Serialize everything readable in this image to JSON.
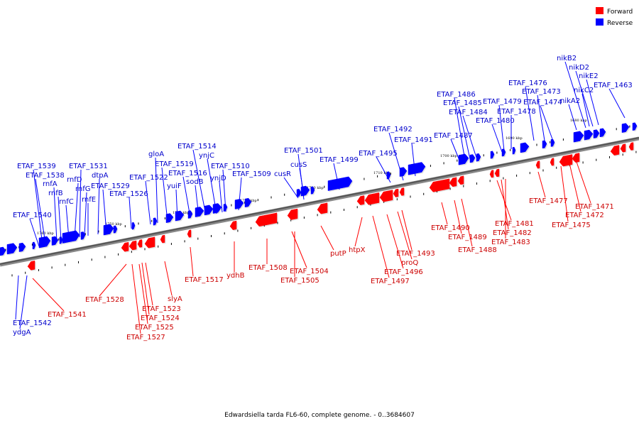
{
  "legend": {
    "forward": {
      "label": "Forward",
      "color": "#ff0000"
    },
    "reverse": {
      "label": "Reverse",
      "color": "#0000ff"
    }
  },
  "caption": "Edwardsiella tarda FL6-60, complete genome. - 0..3684607",
  "kbp_ticks": [
    "1760 kbp",
    "1750 kbp",
    "1740 kbp",
    "1730 kbp",
    "1720 kbp",
    "1710 kbp",
    "1700 kbp",
    "1690 kbp",
    "1680 kbp"
  ],
  "reverse_labels": [
    "ETAF_1539",
    "ETAF_1538",
    "rnfA",
    "rnfB",
    "rnfC",
    "ETAF_1540",
    "ETAF_1531",
    "rnfD",
    "dtpA",
    "rnfG",
    "rnfE",
    "ETAF_1529",
    "ETAF_1526",
    "gloA",
    "ETAF_1519",
    "ETAF_1522",
    "yuiF",
    "ETAF_1516",
    "sodB",
    "ETAF_1514",
    "ynjC",
    "ETAF_1510",
    "ynjD",
    "ETAF_1509",
    "ETAF_1501",
    "cusS",
    "cusR",
    "ETAF_1499",
    "ETAF_1495",
    "ETAF_1492",
    "ETAF_1491",
    "ETAF_1486",
    "ETAF_1485",
    "ETAF_1484",
    "ETAF_1487",
    "ETAF_1479",
    "ETAF_1478",
    "ETAF_1480",
    "ETAF_1476",
    "ETAF_1473",
    "ETAF_1474",
    "nikB2",
    "nikD2",
    "nikE2",
    "nikC2",
    "nikA2",
    "ETAF_1463",
    "ETAF_1542",
    "ydgA"
  ],
  "forward_labels": [
    "ETAF_1541",
    "ETAF_1528",
    "ETAF_1523",
    "ETAF_1524",
    "ETAF_1525",
    "ETAF_1527",
    "slyA",
    "ETAF_1517",
    "ydhB",
    "ETAF_1508",
    "ETAF_1504",
    "ETAF_1505",
    "putP",
    "htpX",
    "ETAF_1493",
    "proQ",
    "ETAF_1496",
    "ETAF_1497",
    "ETAF_1490",
    "ETAF_1489",
    "ETAF_1488",
    "ETAF_1481",
    "ETAF_1482",
    "ETAF_1483",
    "ETAF_1477",
    "ETAF_1471",
    "ETAF_1472",
    "ETAF_1475"
  ]
}
